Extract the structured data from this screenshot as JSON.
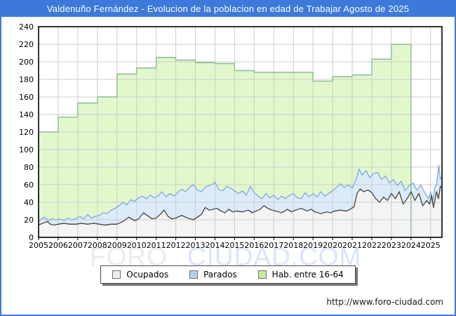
{
  "titlebar": {
    "title": "Valdenuño Fernández - Evolucion de la poblacion en edad de Trabajar Agosto de 2025"
  },
  "watermark": {
    "part1": "FORO",
    "part2": "CIUDAD.COM"
  },
  "footer": {
    "url": "http://www.foro-ciudad.com"
  },
  "colors": {
    "frame_blue": "#3c79da",
    "grid": "#cccccc",
    "plot_border": "#000000"
  },
  "legend": {
    "items": [
      {
        "label": "Ocupados",
        "fill": "#ededed",
        "border": "#707070"
      },
      {
        "label": "Parados",
        "fill": "#b4d0ee",
        "border": "#707070"
      },
      {
        "label": "Hab. entre 16-64",
        "fill": "#c4ef9a",
        "border": "#707070"
      }
    ]
  },
  "chart_data": {
    "type": "area",
    "title": "Valdenuño Fernández - Evolucion de la poblacion en edad de Trabajar Agosto de 2025",
    "x_range": [
      2005,
      2025.58
    ],
    "y_range": [
      0,
      240
    ],
    "x_ticks": [
      2005,
      2006,
      2007,
      2008,
      2009,
      2010,
      2011,
      2012,
      2013,
      2014,
      2015,
      2016,
      2017,
      2018,
      2019,
      2020,
      2021,
      2022,
      2023,
      2024,
      2025
    ],
    "y_ticks": [
      0,
      20,
      40,
      60,
      80,
      100,
      120,
      140,
      160,
      180,
      200,
      220,
      240
    ],
    "grid": true,
    "legend_position": "bottom",
    "series": [
      {
        "name": "Hab. entre 16-64",
        "mode": "step",
        "fill": "#e3f7cd",
        "stroke": "#8cbc96",
        "x": [
          2005,
          2006,
          2007,
          2008,
          2009,
          2010,
          2011,
          2012,
          2013,
          2014,
          2015,
          2016,
          2017,
          2018,
          2019,
          2020,
          2021,
          2022,
          2023
        ],
        "values": [
          120,
          137,
          153,
          160,
          186,
          193,
          205,
          202,
          199,
          198,
          190,
          188,
          188,
          188,
          178,
          183,
          185,
          203,
          220
        ],
        "x_end": 2024
      },
      {
        "name": "Parados",
        "mode": "line",
        "fill": "#dcebf9",
        "stroke": "#86aedd",
        "points": [
          [
            2005,
            18
          ],
          [
            2005.15,
            21
          ],
          [
            2005.3,
            23
          ],
          [
            2005.5,
            19
          ],
          [
            2005.7,
            21
          ],
          [
            2005.9,
            20
          ],
          [
            2006.1,
            21
          ],
          [
            2006.3,
            19
          ],
          [
            2006.5,
            22
          ],
          [
            2006.7,
            20
          ],
          [
            2006.9,
            21
          ],
          [
            2007.1,
            24
          ],
          [
            2007.3,
            21
          ],
          [
            2007.5,
            26
          ],
          [
            2007.7,
            22
          ],
          [
            2007.9,
            24
          ],
          [
            2008.1,
            25
          ],
          [
            2008.3,
            28
          ],
          [
            2008.5,
            27
          ],
          [
            2008.7,
            31
          ],
          [
            2008.9,
            33
          ],
          [
            2009.1,
            36
          ],
          [
            2009.3,
            40
          ],
          [
            2009.5,
            37
          ],
          [
            2009.7,
            43
          ],
          [
            2009.9,
            41
          ],
          [
            2010.1,
            45
          ],
          [
            2010.3,
            47
          ],
          [
            2010.5,
            44
          ],
          [
            2010.7,
            48
          ],
          [
            2010.9,
            45
          ],
          [
            2011.1,
            47
          ],
          [
            2011.3,
            52
          ],
          [
            2011.5,
            46
          ],
          [
            2011.7,
            50
          ],
          [
            2011.9,
            47
          ],
          [
            2012.1,
            51
          ],
          [
            2012.3,
            55
          ],
          [
            2012.5,
            52
          ],
          [
            2012.7,
            57
          ],
          [
            2012.9,
            60
          ],
          [
            2013.1,
            54
          ],
          [
            2013.3,
            52
          ],
          [
            2013.5,
            57
          ],
          [
            2013.7,
            59
          ],
          [
            2013.9,
            61
          ],
          [
            2014,
            63
          ],
          [
            2014.2,
            54
          ],
          [
            2014.4,
            53
          ],
          [
            2014.6,
            58
          ],
          [
            2014.8,
            56
          ],
          [
            2015,
            53
          ],
          [
            2015.2,
            50
          ],
          [
            2015.4,
            53
          ],
          [
            2015.6,
            48
          ],
          [
            2015.8,
            58
          ],
          [
            2016,
            51
          ],
          [
            2016.2,
            47
          ],
          [
            2016.4,
            44
          ],
          [
            2016.6,
            50
          ],
          [
            2016.8,
            45
          ],
          [
            2017,
            48
          ],
          [
            2017.2,
            43
          ],
          [
            2017.4,
            47
          ],
          [
            2017.6,
            44
          ],
          [
            2017.8,
            48
          ],
          [
            2018,
            50
          ],
          [
            2018.2,
            45
          ],
          [
            2018.4,
            44
          ],
          [
            2018.6,
            51
          ],
          [
            2018.8,
            46
          ],
          [
            2019,
            50
          ],
          [
            2019.2,
            46
          ],
          [
            2019.4,
            52
          ],
          [
            2019.6,
            47
          ],
          [
            2019.8,
            50
          ],
          [
            2020,
            53
          ],
          [
            2020.2,
            57
          ],
          [
            2020.4,
            61
          ],
          [
            2020.6,
            57
          ],
          [
            2020.8,
            60
          ],
          [
            2021,
            56
          ],
          [
            2021.2,
            66
          ],
          [
            2021.35,
            78
          ],
          [
            2021.5,
            71
          ],
          [
            2021.7,
            76
          ],
          [
            2021.9,
            68
          ],
          [
            2022.1,
            73
          ],
          [
            2022.3,
            74
          ],
          [
            2022.5,
            66
          ],
          [
            2022.7,
            70
          ],
          [
            2022.9,
            62
          ],
          [
            2023.1,
            66
          ],
          [
            2023.3,
            59
          ],
          [
            2023.5,
            64
          ],
          [
            2023.7,
            53
          ],
          [
            2023.9,
            59
          ],
          [
            2024.1,
            62
          ],
          [
            2024.3,
            54
          ],
          [
            2024.5,
            60
          ],
          [
            2024.7,
            51
          ],
          [
            2024.9,
            44
          ],
          [
            2025,
            52
          ],
          [
            2025.1,
            38
          ],
          [
            2025.2,
            56
          ],
          [
            2025.3,
            60
          ],
          [
            2025.42,
            82
          ],
          [
            2025.5,
            66
          ],
          [
            2025.58,
            70
          ]
        ]
      },
      {
        "name": "Ocupados",
        "mode": "line",
        "fill": "#f4f4f4",
        "stroke": "#4f4f4f",
        "points": [
          [
            2005,
            14
          ],
          [
            2005.2,
            16
          ],
          [
            2005.45,
            18
          ],
          [
            2005.6,
            15
          ],
          [
            2005.8,
            14
          ],
          [
            2006,
            15
          ],
          [
            2006.3,
            16
          ],
          [
            2006.6,
            15
          ],
          [
            2006.9,
            15
          ],
          [
            2007.2,
            16
          ],
          [
            2007.5,
            15
          ],
          [
            2007.8,
            16
          ],
          [
            2008.1,
            15
          ],
          [
            2008.4,
            14
          ],
          [
            2008.7,
            15
          ],
          [
            2009,
            15
          ],
          [
            2009.3,
            18
          ],
          [
            2009.6,
            23
          ],
          [
            2009.9,
            19
          ],
          [
            2010.1,
            21
          ],
          [
            2010.35,
            28
          ],
          [
            2010.6,
            24
          ],
          [
            2010.8,
            21
          ],
          [
            2011,
            22
          ],
          [
            2011.2,
            26
          ],
          [
            2011.4,
            31
          ],
          [
            2011.6,
            24
          ],
          [
            2011.8,
            21
          ],
          [
            2012,
            22
          ],
          [
            2012.3,
            25
          ],
          [
            2012.6,
            22
          ],
          [
            2012.9,
            20
          ],
          [
            2013.1,
            23
          ],
          [
            2013.3,
            26
          ],
          [
            2013.5,
            34
          ],
          [
            2013.7,
            31
          ],
          [
            2013.9,
            32
          ],
          [
            2014.1,
            33
          ],
          [
            2014.3,
            30
          ],
          [
            2014.5,
            28
          ],
          [
            2014.7,
            32
          ],
          [
            2014.9,
            29
          ],
          [
            2015.1,
            30
          ],
          [
            2015.4,
            29
          ],
          [
            2015.7,
            31
          ],
          [
            2015.9,
            28
          ],
          [
            2016.1,
            30
          ],
          [
            2016.3,
            32
          ],
          [
            2016.5,
            36
          ],
          [
            2016.7,
            33
          ],
          [
            2016.9,
            31
          ],
          [
            2017.1,
            30
          ],
          [
            2017.4,
            28
          ],
          [
            2017.7,
            32
          ],
          [
            2017.9,
            29
          ],
          [
            2018.1,
            31
          ],
          [
            2018.4,
            33
          ],
          [
            2018.7,
            30
          ],
          [
            2018.9,
            32
          ],
          [
            2019.1,
            29
          ],
          [
            2019.4,
            27
          ],
          [
            2019.7,
            29
          ],
          [
            2019.9,
            28
          ],
          [
            2020.1,
            30
          ],
          [
            2020.4,
            31
          ],
          [
            2020.7,
            30
          ],
          [
            2020.9,
            32
          ],
          [
            2021.1,
            35
          ],
          [
            2021.25,
            50
          ],
          [
            2021.4,
            55
          ],
          [
            2021.6,
            52
          ],
          [
            2021.8,
            54
          ],
          [
            2022,
            51
          ],
          [
            2022.2,
            44
          ],
          [
            2022.4,
            40
          ],
          [
            2022.6,
            46
          ],
          [
            2022.8,
            42
          ],
          [
            2023,
            50
          ],
          [
            2023.2,
            44
          ],
          [
            2023.4,
            52
          ],
          [
            2023.6,
            38
          ],
          [
            2023.8,
            44
          ],
          [
            2024,
            52
          ],
          [
            2024.2,
            42
          ],
          [
            2024.4,
            50
          ],
          [
            2024.6,
            36
          ],
          [
            2024.8,
            42
          ],
          [
            2024.95,
            38
          ],
          [
            2025.05,
            48
          ],
          [
            2025.15,
            34
          ],
          [
            2025.3,
            52
          ],
          [
            2025.4,
            44
          ],
          [
            2025.5,
            58
          ],
          [
            2025.58,
            57
          ]
        ]
      }
    ]
  }
}
